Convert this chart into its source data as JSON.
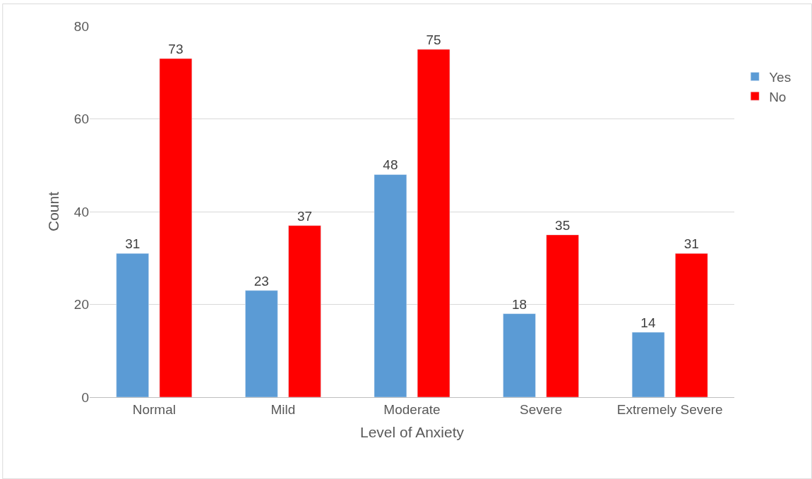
{
  "chart_data": {
    "type": "bar",
    "xlabel": "Level of Anxiety",
    "ylabel": "Count",
    "categories": [
      "Normal",
      "Mild",
      "Moderate",
      "Severe",
      "Extremely Severe"
    ],
    "series": [
      {
        "name": "Yes",
        "color": "#5b9bd5",
        "values": [
          31,
          23,
          48,
          18,
          14
        ]
      },
      {
        "name": "No",
        "color": "#ff0000",
        "values": [
          73,
          37,
          75,
          35,
          31
        ]
      }
    ],
    "ylim": [
      0,
      80
    ],
    "yticks": [
      0,
      20,
      40,
      60,
      80
    ],
    "grid": "y",
    "legend": "right",
    "data_labels": true
  }
}
